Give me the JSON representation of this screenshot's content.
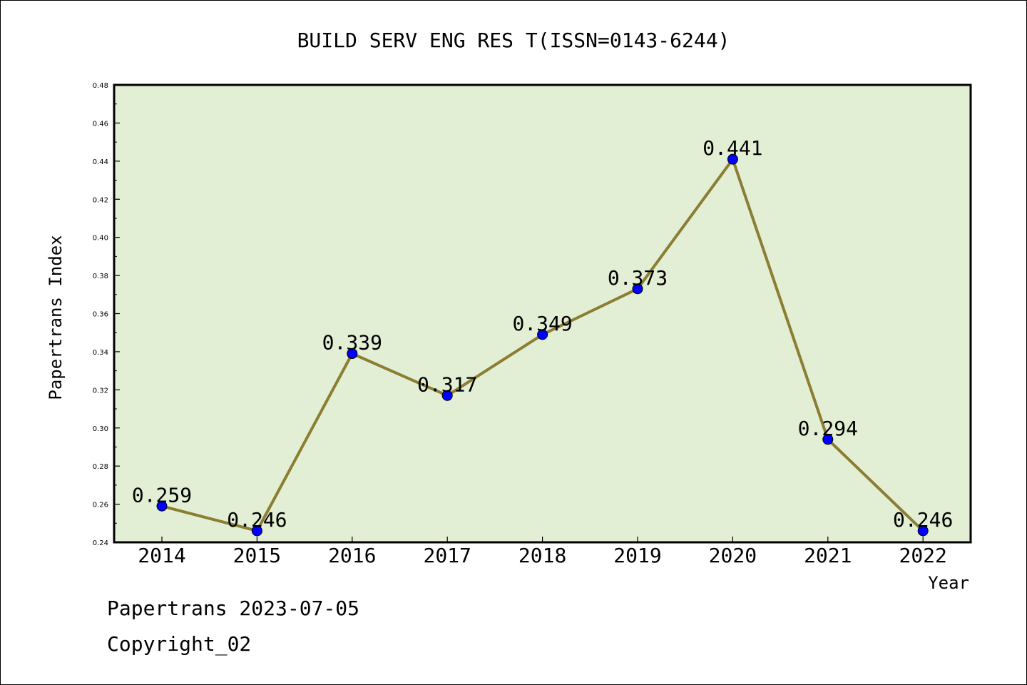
{
  "chart_data": {
    "type": "line",
    "title": "BUILD SERV ENG RES T(ISSN=0143-6244)",
    "xlabel": "Year",
    "ylabel": "Papertrans Index",
    "categories": [
      "2014",
      "2015",
      "2016",
      "2017",
      "2018",
      "2019",
      "2020",
      "2021",
      "2022"
    ],
    "series": [
      {
        "values": [
          0.259,
          0.246,
          0.339,
          0.317,
          0.349,
          0.373,
          0.441,
          0.294,
          0.246
        ],
        "labels": [
          "0.259",
          "0.246",
          "0.339",
          "0.317",
          "0.349",
          "0.373",
          "0.441",
          "0.294",
          "0.246"
        ]
      }
    ],
    "ylim": [
      0.24,
      0.48
    ],
    "yticks": [
      "0.24",
      "0.26",
      "0.28",
      "0.30",
      "0.32",
      "0.34",
      "0.36",
      "0.38",
      "0.40",
      "0.42",
      "0.44",
      "0.46",
      "0.48"
    ],
    "grid": false,
    "colors": {
      "plot_background": "#e2efd4",
      "line": "#8b7d32",
      "marker": "#0000ff"
    }
  },
  "footer": {
    "line1": "Papertrans 2023-07-05",
    "line2": "Copyright_02"
  }
}
